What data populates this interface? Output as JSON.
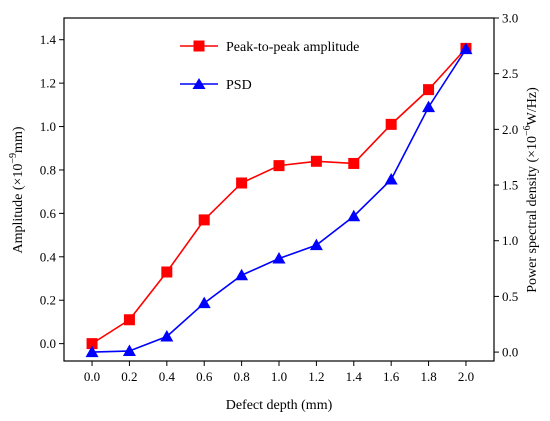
{
  "chart_data": {
    "type": "line",
    "xlabel": "Defect depth (mm)",
    "x": [
      0.0,
      0.2,
      0.4,
      0.6,
      0.8,
      1.0,
      1.2,
      1.4,
      1.6,
      1.8,
      2.0
    ],
    "x_tick_labels": [
      "0.0",
      "0.2",
      "0.4",
      "0.6",
      "0.8",
      "1.0",
      "1.2",
      "1.4",
      "1.6",
      "1.8",
      "2.0"
    ],
    "xlim": [
      -0.15,
      2.15
    ],
    "ylabel_left": {
      "prefix": "Amplitude (×10",
      "exp": "−9",
      "suffix": "mm)"
    },
    "y_left_ticks": [
      0.0,
      0.2,
      0.4,
      0.6,
      0.8,
      1.0,
      1.2,
      1.4
    ],
    "y_left_tick_labels": [
      "0.0",
      "0.2",
      "0.4",
      "0.6",
      "0.8",
      "1.0",
      "1.2",
      "1.4"
    ],
    "ylim_left": [
      -0.08,
      1.5
    ],
    "ylabel_right": {
      "prefix": "Power spectral density (×10",
      "exp": "−6",
      "suffix": "W/Hz)"
    },
    "y_right_ticks": [
      0.0,
      0.5,
      1.0,
      1.5,
      2.0,
      2.5,
      3.0
    ],
    "y_right_tick_labels": [
      "0.0",
      "0.5",
      "1.0",
      "1.5",
      "2.0",
      "2.5",
      "3.0"
    ],
    "ylim_right": [
      -0.08,
      3.0
    ],
    "grid": false,
    "legend_position": "top-center",
    "series": [
      {
        "name": "Peak-to-peak amplitude",
        "axis": "left",
        "marker": "square",
        "color": "#ff0000",
        "values": [
          0.0,
          0.11,
          0.33,
          0.57,
          0.74,
          0.82,
          0.84,
          0.83,
          1.01,
          1.17,
          1.36
        ]
      },
      {
        "name": "PSD",
        "axis": "right",
        "marker": "triangle",
        "color": "#0000ff",
        "values": [
          0.0,
          0.01,
          0.14,
          0.44,
          0.69,
          0.84,
          0.96,
          1.22,
          1.55,
          2.2,
          2.72
        ]
      }
    ]
  }
}
